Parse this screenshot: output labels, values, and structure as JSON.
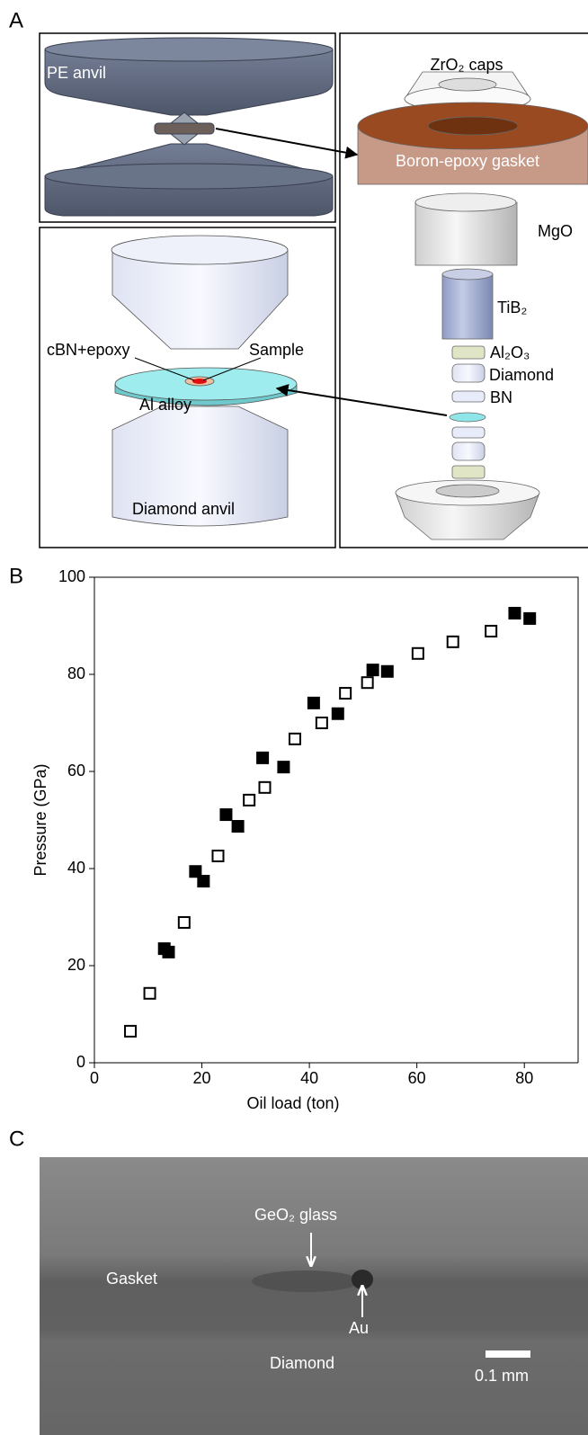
{
  "panel_a": {
    "label": "A",
    "pe_anvil": "PE anvil",
    "zro2_caps": "ZrO₂ caps",
    "gasket": "Boron-epoxy gasket",
    "mgo": "MgO",
    "tib2": "TiB₂",
    "al2o3": "Al₂O₃",
    "diamond": "Diamond",
    "bn": "BN",
    "cbn_epoxy": "cBN+epoxy",
    "sample": "Sample",
    "al_alloy": "Al alloy",
    "diamond_anvil": "Diamond anvil"
  },
  "panel_b": {
    "label": "B"
  },
  "chart_data": {
    "type": "scatter",
    "xlabel": "Oil load (ton)",
    "ylabel": "Pressure (GPa)",
    "xlim": [
      0,
      90
    ],
    "ylim": [
      0,
      100
    ],
    "xticks": [
      0,
      20,
      40,
      60,
      80
    ],
    "yticks": [
      0,
      20,
      40,
      60,
      80,
      100
    ],
    "series": [
      {
        "color": "#000000",
        "filled": true,
        "x": [
          13.0,
          13.8,
          18.8,
          20.3,
          24.5,
          26.7,
          31.3,
          35.2,
          40.8,
          45.3,
          51.8,
          54.5,
          78.2,
          81.0
        ],
        "values": [
          23.5,
          22.8,
          39.4,
          37.4,
          51.1,
          48.7,
          62.8,
          60.9,
          74.1,
          71.9,
          80.9,
          80.6,
          92.6,
          91.5
        ]
      },
      {
        "color": "#000000",
        "filled": false,
        "x": [
          6.7,
          10.3,
          16.7,
          23.0,
          28.8,
          31.7,
          37.3,
          42.3,
          46.7,
          50.8,
          60.2,
          66.7,
          73.8
        ],
        "values": [
          6.5,
          14.3,
          28.9,
          42.6,
          54.1,
          56.7,
          66.7,
          70.0,
          76.1,
          78.3,
          84.3,
          86.7,
          88.9
        ]
      }
    ]
  },
  "panel_c": {
    "label": "C",
    "geo2_glass": "GeO₂ glass",
    "gasket": "Gasket",
    "au": "Au",
    "diamond": "Diamond",
    "scale": "0.1 mm"
  }
}
